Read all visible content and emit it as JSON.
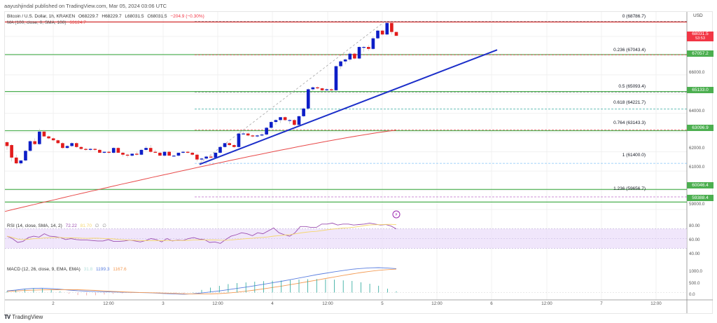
{
  "publisher": "aayushjindal published on TradingView.com, Mar 05, 2024 03:06 UTC",
  "legend": {
    "symbol": "Bitcoin / U.S. Dollar, 1h, KRAKEN",
    "open": "O68229.7",
    "high": "H68229.7",
    "low": "L68031.5",
    "close": "C68031.5",
    "change": "−204.9 (−0.30%)",
    "ma_label": "MA (100, close, 0, SMA, 100)",
    "ma_value": "63124.7"
  },
  "rsi_legend": {
    "label": "RSI (14, close, SMA, 14, 2)",
    "value": "72.22",
    "sma_value": "81.70",
    "extra1": "∅",
    "extra2": "∅"
  },
  "macd_legend": {
    "label": "MACD (12, 26, close, 9, EMA, EMA)",
    "hist": "31.8",
    "macd": "1199.3",
    "signal": "1167.6"
  },
  "currency": "USD",
  "price_axis": [
    "66000.0",
    "64000.0",
    "62000.0",
    "61000.0",
    "59000.0"
  ],
  "rsi_axis": [
    "80.00",
    "60.00",
    "40.00"
  ],
  "macd_axis": [
    "1000.0",
    "500.0",
    "0.0"
  ],
  "time_axis": [
    "2",
    "12:00",
    "3",
    "12:00",
    "4",
    "12:00",
    "5",
    "12:00",
    "6",
    "12:00",
    "7",
    "12:00"
  ],
  "price_tags": [
    {
      "value": "68031.5",
      "sub": "53:53",
      "color": "#f23645"
    },
    {
      "value": "67057.2",
      "color": "#4caf50"
    },
    {
      "value": "65133.0",
      "color": "#4caf50"
    },
    {
      "value": "63096.9",
      "color": "#4caf50"
    },
    {
      "value": "60046.4",
      "color": "#4caf50"
    },
    {
      "value": "59388.4",
      "color": "#4caf50"
    }
  ],
  "fib_levels": [
    {
      "label": "0 (68786.7)",
      "color": "#787b86"
    },
    {
      "label": "0.236 (67043.4)",
      "color": "#f23645"
    },
    {
      "label": "0.5 (65093.4)",
      "color": "#787b86"
    },
    {
      "label": "0.618 (64221.7)",
      "color": "#26a69a"
    },
    {
      "label": "0.764 (63143.3)",
      "color": "#d32f2f"
    },
    {
      "label": "1 (61400.0)",
      "color": "#64b5f6"
    },
    {
      "label": "1.236 (59656.7)",
      "color": "#ab47bc"
    }
  ],
  "footer": {
    "brand": "TradingView",
    "logo": "TV"
  },
  "colors": {
    "up": "#0d1ec7",
    "down": "#e21c1c",
    "ma": "#e84a4a",
    "trendline": "#1b2ec9",
    "hline": "#4caf50",
    "rsi": "#9c4fb0",
    "rsi_ma": "#f5d76e",
    "macd": "#5b7fe0",
    "signal": "#f39c56",
    "hist": "#26a69a"
  },
  "chart_data": {
    "type": "candlestick",
    "title": "Bitcoin / U.S. Dollar, 1h, KRAKEN",
    "xlabel": "",
    "ylabel": "USD",
    "ylim": [
      58600,
      69200
    ],
    "x_ticks": [
      "2",
      "12:00",
      "3",
      "12:00",
      "4",
      "12:00",
      "5",
      "12:00",
      "6",
      "12:00",
      "7",
      "12:00"
    ],
    "y_ticks": [
      59000,
      61000,
      62000,
      64000,
      66000
    ],
    "candles_approx": [
      [
        62500,
        62550,
        62100,
        62300
      ],
      [
        62350,
        62400,
        61500,
        61700
      ],
      [
        61700,
        61850,
        61350,
        61400
      ],
      [
        61400,
        61550,
        61300,
        61550
      ],
      [
        61550,
        62100,
        61500,
        62050
      ],
      [
        62050,
        62600,
        62000,
        62550
      ],
      [
        62550,
        62700,
        62350,
        62400
      ],
      [
        62400,
        63200,
        62350,
        63050
      ],
      [
        63050,
        63150,
        62800,
        62800
      ],
      [
        62800,
        62850,
        62650,
        62700
      ],
      [
        62700,
        62750,
        62550,
        62600
      ],
      [
        62600,
        62650,
        62400,
        62450
      ],
      [
        62450,
        62500,
        62150,
        62200
      ],
      [
        62200,
        62350,
        62150,
        62300
      ],
      [
        62300,
        62500,
        62250,
        62450
      ],
      [
        62450,
        62500,
        62200,
        62250
      ],
      [
        62250,
        62300,
        62100,
        62150
      ],
      [
        62150,
        62200,
        62050,
        62100
      ],
      [
        62100,
        62200,
        62050,
        62150
      ],
      [
        62150,
        62200,
        62050,
        62100
      ],
      [
        62100,
        62150,
        61950,
        61950
      ],
      [
        61950,
        62000,
        61900,
        62000
      ],
      [
        62000,
        62050,
        61900,
        61950
      ],
      [
        61950,
        62250,
        61900,
        62200
      ],
      [
        62200,
        62250,
        61950,
        61950
      ],
      [
        61950,
        62000,
        61750,
        61850
      ],
      [
        61850,
        61900,
        61700,
        61800
      ],
      [
        61800,
        61900,
        61750,
        61900
      ],
      [
        61900,
        62000,
        61800,
        61850
      ],
      [
        61850,
        62150,
        61800,
        62100
      ],
      [
        62100,
        62300,
        62050,
        62200
      ],
      [
        62200,
        62350,
        61950,
        62000
      ],
      [
        62000,
        62100,
        61950,
        61950
      ],
      [
        61950,
        62000,
        61800,
        61800
      ],
      [
        61800,
        62050,
        61750,
        62000
      ],
      [
        62000,
        62050,
        61800,
        61800
      ],
      [
        61800,
        61850,
        61750,
        61800
      ],
      [
        61800,
        61950,
        61750,
        61950
      ],
      [
        61950,
        62050,
        61900,
        62000
      ],
      [
        62000,
        62050,
        61900,
        61950
      ],
      [
        61950,
        62000,
        61800,
        61850
      ],
      [
        61850,
        61900,
        61500,
        61600
      ],
      [
        61600,
        61700,
        61400,
        61650
      ],
      [
        61650,
        61800,
        61600,
        61750
      ],
      [
        61750,
        61850,
        61650,
        61700
      ],
      [
        61700,
        62000,
        61650,
        61950
      ],
      [
        61950,
        62300,
        61900,
        62250
      ],
      [
        62250,
        62450,
        62200,
        62450
      ],
      [
        62450,
        62500,
        62300,
        62350
      ],
      [
        62350,
        62400,
        62200,
        62250
      ],
      [
        62250,
        63000,
        62200,
        62950
      ],
      [
        62950,
        63050,
        62900,
        62950
      ],
      [
        62950,
        63000,
        62800,
        62850
      ],
      [
        62850,
        62900,
        62750,
        62800
      ],
      [
        62800,
        62900,
        62750,
        62850
      ],
      [
        62850,
        63000,
        62800,
        62900
      ],
      [
        62900,
        63300,
        62850,
        63250
      ],
      [
        63250,
        63600,
        63200,
        63550
      ],
      [
        63550,
        63700,
        63400,
        63650
      ],
      [
        63650,
        63800,
        63500,
        63800
      ],
      [
        63800,
        63850,
        63600,
        63650
      ],
      [
        63650,
        63700,
        63450,
        63650
      ],
      [
        63650,
        63700,
        63350,
        63400
      ],
      [
        63400,
        63900,
        63350,
        63850
      ],
      [
        63850,
        64300,
        63800,
        64250
      ],
      [
        64250,
        65300,
        64200,
        65250
      ],
      [
        65250,
        65400,
        65150,
        65350
      ],
      [
        65350,
        65400,
        65250,
        65300
      ],
      [
        65300,
        65350,
        65150,
        65200
      ],
      [
        65200,
        65300,
        65100,
        65250
      ],
      [
        65250,
        65300,
        65150,
        65200
      ],
      [
        65200,
        66500,
        65100,
        66450
      ],
      [
        66450,
        66750,
        66300,
        66700
      ],
      [
        66700,
        66850,
        66550,
        66800
      ],
      [
        66800,
        67200,
        66700,
        67100
      ],
      [
        67100,
        67150,
        66800,
        66850
      ],
      [
        66850,
        67500,
        66800,
        67450
      ],
      [
        67450,
        67500,
        67200,
        67450
      ],
      [
        67450,
        67550,
        67250,
        67350
      ],
      [
        67350,
        68000,
        67300,
        67900
      ],
      [
        67900,
        68350,
        67850,
        68300
      ],
      [
        68300,
        68350,
        68050,
        68100
      ],
      [
        68100,
        68800,
        68050,
        68700
      ],
      [
        68700,
        68750,
        68100,
        68230
      ],
      [
        68230,
        68230,
        68031,
        68031
      ]
    ],
    "series": [
      {
        "name": "MA (100, close, 0, SMA, 100)",
        "type": "line",
        "last": 63124.7
      },
      {
        "name": "RSI (14)",
        "last": 72.22,
        "range": [
          0,
          100
        ],
        "band": [
          30,
          70
        ]
      },
      {
        "name": "MACD (12,26,9)",
        "macd": 1199.3,
        "signal": 1167.6,
        "hist": 31.8
      }
    ],
    "horizontal_levels": [
      67057.2,
      65133.0,
      63096.9,
      60046.4,
      59388.4
    ],
    "fibonacci": [
      {
        "ratio": 0,
        "price": 68786.7
      },
      {
        "ratio": 0.236,
        "price": 67043.4
      },
      {
        "ratio": 0.5,
        "price": 65093.4
      },
      {
        "ratio": 0.618,
        "price": 64221.7
      },
      {
        "ratio": 0.764,
        "price": 63143.3
      },
      {
        "ratio": 1,
        "price": 61400.0
      },
      {
        "ratio": 1.236,
        "price": 59656.7
      }
    ],
    "trendline": {
      "from": [
        61400,
        "Mar 3 ~10:00"
      ],
      "to": [
        67300,
        "Mar 6 ~00:00"
      ]
    },
    "grid": true,
    "legend_position": "top-left"
  }
}
